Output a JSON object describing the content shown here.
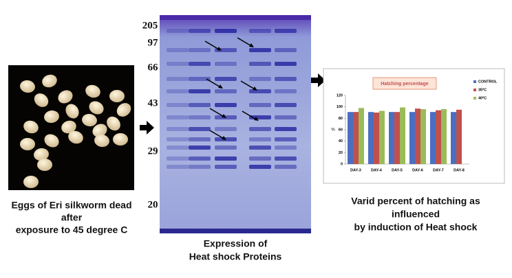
{
  "eggs_panel": {
    "caption": [
      "Eggs of Eri silkworm dead",
      "after",
      "exposure to 45 degree C"
    ]
  },
  "gel_panel": {
    "markers": [
      "205",
      "97",
      "66",
      "43",
      "29",
      "20"
    ],
    "caption": [
      "Expression of",
      "Heat shock Proteins"
    ]
  },
  "chart_panel": {
    "caption": [
      "Varid percent of hatching as",
      "influenced",
      "by induction of Heat shock"
    ]
  },
  "chart_data": {
    "type": "bar",
    "title": "Hatching percentage",
    "y_label": "%",
    "categories": [
      "DAY-3",
      "DAY-4",
      "DAY-5",
      "DAY-6",
      "DAY-7",
      "DAY-8"
    ],
    "series": [
      {
        "name": "CONTROL",
        "color": "#4a6fc1",
        "values": [
          91,
          91,
          91,
          91,
          91,
          91
        ]
      },
      {
        "name": "35ºC",
        "color": "#c0504d",
        "values": [
          91,
          90,
          91,
          97,
          94,
          95
        ]
      },
      {
        "name": "40ºC",
        "color": "#9bbb59",
        "values": [
          98,
          93,
          99,
          96,
          96,
          null
        ]
      }
    ],
    "ylim": [
      0,
      120
    ],
    "yticks": [
      0,
      20,
      40,
      60,
      80,
      100,
      120
    ],
    "grid": false,
    "legend": "right"
  }
}
